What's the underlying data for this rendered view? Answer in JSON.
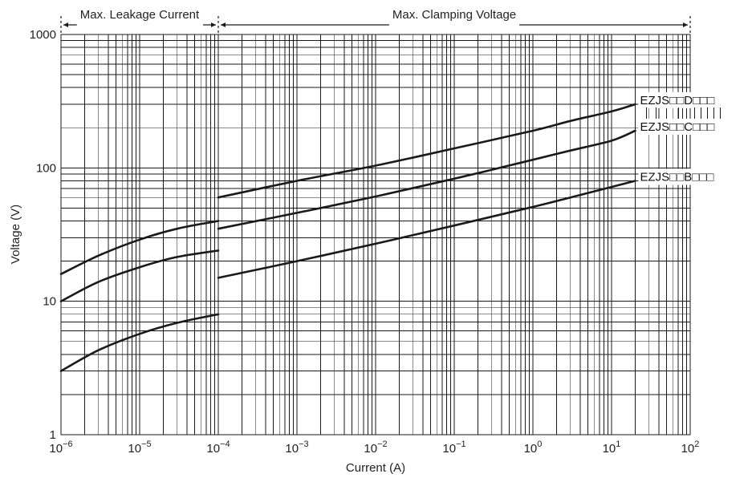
{
  "chart_data": {
    "type": "line",
    "title": "",
    "xlabel": "Current (A)",
    "ylabel": "Voltage (V)",
    "x_scale": "log",
    "y_scale": "log",
    "xlim": [
      1e-06,
      100
    ],
    "ylim": [
      1,
      1000
    ],
    "grid": true,
    "x_ticks": [
      {
        "value": 1e-06,
        "base": "10",
        "exp": "−6"
      },
      {
        "value": 1e-05,
        "base": "10",
        "exp": "−5"
      },
      {
        "value": 0.0001,
        "base": "10",
        "exp": "−4"
      },
      {
        "value": 0.001,
        "base": "10",
        "exp": "−3"
      },
      {
        "value": 0.01,
        "base": "10",
        "exp": "−2"
      },
      {
        "value": 0.1,
        "base": "10",
        "exp": "−1"
      },
      {
        "value": 1,
        "base": "10",
        "exp": "0"
      },
      {
        "value": 10,
        "base": "10",
        "exp": "1"
      },
      {
        "value": 100,
        "base": "10",
        "exp": "2"
      }
    ],
    "y_ticks": [
      {
        "value": 1,
        "label": "1"
      },
      {
        "value": 10,
        "label": "10"
      },
      {
        "value": 100,
        "label": "100"
      },
      {
        "value": 1000,
        "label": "1000"
      }
    ],
    "ranges": [
      {
        "label": "Max. Leakage Current",
        "from": 1e-06,
        "to": 0.0001
      },
      {
        "label": "Max. Clamping Voltage",
        "from": 0.0001,
        "to": 100
      }
    ],
    "series": [
      {
        "name": "EZJS□□D□□□",
        "segments": [
          [
            [
              1e-06,
              16
            ],
            [
              3e-06,
              22
            ],
            [
              1e-05,
              29
            ],
            [
              3e-05,
              35
            ],
            [
              0.0001,
              40
            ]
          ],
          [
            [
              0.0001,
              60
            ],
            [
              0.001,
              80
            ],
            [
              0.01,
              104
            ],
            [
              0.1,
              140
            ],
            [
              1,
              190
            ],
            [
              3,
              225
            ],
            [
              10,
              265
            ],
            [
              20,
              300
            ]
          ]
        ]
      },
      {
        "name": "EZJS□□C□□□",
        "segments": [
          [
            [
              1e-06,
              10
            ],
            [
              3e-06,
              14
            ],
            [
              1e-05,
              18
            ],
            [
              3e-05,
              21.5
            ],
            [
              0.0001,
              24
            ]
          ],
          [
            [
              0.0001,
              35
            ],
            [
              0.001,
              46
            ],
            [
              0.01,
              61
            ],
            [
              0.1,
              83
            ],
            [
              1,
              115
            ],
            [
              3,
              135
            ],
            [
              10,
              160
            ],
            [
              20,
              190
            ]
          ]
        ]
      },
      {
        "name": "EZJS□□B□□□",
        "segments": [
          [
            [
              1e-06,
              3
            ],
            [
              3e-06,
              4.3
            ],
            [
              1e-05,
              5.7
            ],
            [
              3e-05,
              6.9
            ],
            [
              0.0001,
              8
            ]
          ],
          [
            [
              0.0001,
              15
            ],
            [
              0.001,
              20
            ],
            [
              0.01,
              27
            ],
            [
              0.1,
              37
            ],
            [
              1,
              51
            ],
            [
              3,
              60
            ],
            [
              10,
              72
            ],
            [
              20,
              80
            ]
          ]
        ]
      }
    ]
  }
}
